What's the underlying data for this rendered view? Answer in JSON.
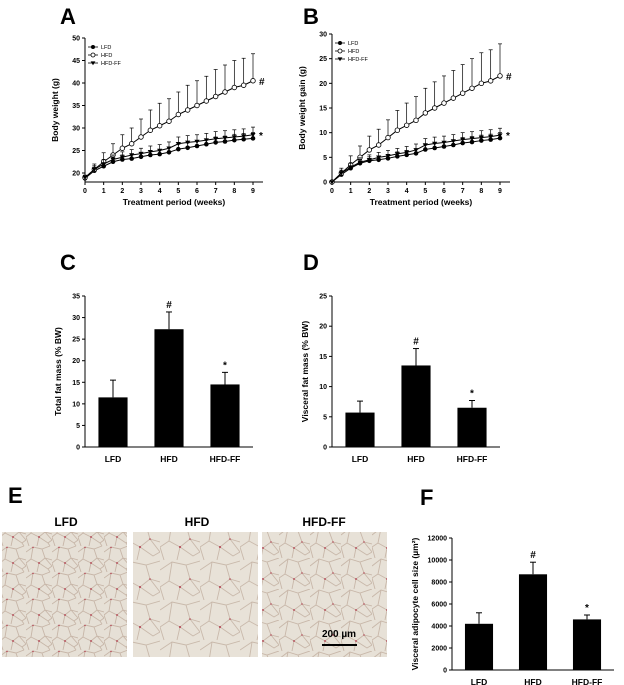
{
  "chart_data": [
    {
      "panel": "A",
      "type": "line",
      "xlabel": "Treatment period (weeks)",
      "ylabel": "Body weight (g)",
      "xlim": [
        0,
        9
      ],
      "ylim": [
        18,
        50
      ],
      "xticks": [
        0,
        1,
        2,
        3,
        4,
        5,
        6,
        7,
        8,
        9
      ],
      "yticks": [
        20,
        25,
        30,
        35,
        40,
        45,
        50
      ],
      "x": [
        0,
        0.5,
        1,
        1.5,
        2,
        2.5,
        3,
        3.5,
        4,
        4.5,
        5,
        5.5,
        6,
        6.5,
        7,
        7.5,
        8,
        8.5,
        9
      ],
      "series": [
        {
          "name": "LFD",
          "marker": "filled-circle",
          "values": [
            18.8,
            20.5,
            21.5,
            22.5,
            23.0,
            23.2,
            23.6,
            24.0,
            24.2,
            24.6,
            25.3,
            25.6,
            26.0,
            26.4,
            26.8,
            27.0,
            27.3,
            27.5,
            27.7
          ],
          "err": [
            0.6,
            0.8,
            0.8,
            0.9,
            1.0,
            1.0,
            1.0,
            1.0,
            1.0,
            1.1,
            1.1,
            1.1,
            1.2,
            1.2,
            1.2,
            1.2,
            1.3,
            1.3,
            1.3
          ]
        },
        {
          "name": "HFD",
          "marker": "open-circle",
          "values": [
            19.0,
            20.8,
            22.5,
            24.0,
            25.5,
            26.5,
            28.0,
            29.5,
            30.5,
            31.5,
            33.0,
            34.0,
            35.0,
            36.0,
            37.0,
            38.0,
            39.0,
            39.5,
            40.5
          ],
          "err": [
            0.5,
            1.2,
            2.0,
            2.5,
            3.0,
            3.5,
            4.0,
            4.5,
            5.0,
            5.0,
            5.0,
            5.5,
            5.5,
            5.5,
            6.0,
            6.0,
            6.0,
            6.0,
            6.0
          ]
        },
        {
          "name": "HFD-FF",
          "marker": "filled-triangle",
          "values": [
            19.0,
            20.8,
            22.0,
            23.0,
            23.5,
            24.0,
            24.3,
            24.7,
            25.0,
            25.5,
            26.5,
            26.8,
            27.0,
            27.3,
            27.6,
            27.8,
            28.0,
            28.2,
            28.5
          ],
          "err": [
            0.5,
            0.8,
            1.0,
            1.0,
            1.2,
            1.2,
            1.2,
            1.3,
            1.3,
            1.4,
            1.5,
            1.5,
            1.5,
            1.5,
            1.6,
            1.6,
            1.6,
            1.6,
            1.7
          ]
        }
      ],
      "annotations": [
        {
          "text": "#",
          "series": "HFD"
        },
        {
          "text": "*",
          "series": "HFD-FF"
        }
      ],
      "legend": "top-left"
    },
    {
      "panel": "B",
      "type": "line",
      "xlabel": "Treatment period (weeks)",
      "ylabel": "Body weight gain (g)",
      "xlim": [
        0,
        9
      ],
      "ylim": [
        0,
        30
      ],
      "xticks": [
        0,
        1,
        2,
        3,
        4,
        5,
        6,
        7,
        8,
        9
      ],
      "yticks": [
        0,
        5,
        10,
        15,
        20,
        25,
        30
      ],
      "x": [
        0,
        0.5,
        1,
        1.5,
        2,
        2.5,
        3,
        3.5,
        4,
        4.5,
        5,
        5.5,
        6,
        6.5,
        7,
        7.5,
        8,
        8.5,
        9
      ],
      "series": [
        {
          "name": "LFD",
          "marker": "filled-circle",
          "values": [
            0,
            1.5,
            2.8,
            3.8,
            4.3,
            4.5,
            4.8,
            5.2,
            5.5,
            5.8,
            6.6,
            6.9,
            7.2,
            7.5,
            7.9,
            8.1,
            8.4,
            8.6,
            8.9
          ],
          "err": [
            0.2,
            0.5,
            0.6,
            0.7,
            0.8,
            0.8,
            0.8,
            0.9,
            0.9,
            0.9,
            1.0,
            1.0,
            1.0,
            1.0,
            1.1,
            1.1,
            1.1,
            1.1,
            1.1
          ]
        },
        {
          "name": "HFD",
          "marker": "open-circle",
          "values": [
            0,
            1.8,
            3.5,
            5.0,
            6.5,
            7.5,
            9.0,
            10.5,
            11.5,
            12.5,
            14.0,
            15.0,
            16.0,
            17.0,
            18.0,
            19.0,
            20.0,
            20.5,
            21.5
          ],
          "err": [
            0.2,
            1.0,
            1.8,
            2.3,
            2.8,
            3.2,
            3.6,
            4.0,
            4.5,
            4.8,
            5.0,
            5.3,
            5.5,
            5.6,
            5.8,
            6.0,
            6.2,
            6.3,
            6.5
          ]
        },
        {
          "name": "HFD-FF",
          "marker": "filled-triangle",
          "values": [
            0,
            1.8,
            3.0,
            4.0,
            4.5,
            5.0,
            5.3,
            5.7,
            6.0,
            6.5,
            7.5,
            7.8,
            8.0,
            8.3,
            8.6,
            8.8,
            9.0,
            9.2,
            9.5
          ],
          "err": [
            0.2,
            0.6,
            0.8,
            0.9,
            1.0,
            1.0,
            1.1,
            1.1,
            1.2,
            1.2,
            1.3,
            1.3,
            1.3,
            1.3,
            1.4,
            1.4,
            1.4,
            1.4,
            1.4
          ]
        }
      ],
      "annotations": [
        {
          "text": "#",
          "series": "HFD"
        },
        {
          "text": "*",
          "series": "HFD-FF"
        }
      ],
      "legend": "top-left"
    },
    {
      "panel": "C",
      "type": "bar",
      "categories": [
        "LFD",
        "HFD",
        "HFD-FF"
      ],
      "values": [
        11.5,
        27.3,
        14.5
      ],
      "err": [
        4.0,
        4.0,
        2.8
      ],
      "annotations": [
        "",
        "#",
        "*"
      ],
      "ylabel": "Total fat mass (% BW)",
      "ylim": [
        0,
        35
      ],
      "yticks": [
        0,
        5,
        10,
        15,
        20,
        25,
        30,
        35
      ]
    },
    {
      "panel": "D",
      "type": "bar",
      "categories": [
        "LFD",
        "HFD",
        "HFD-FF"
      ],
      "values": [
        5.7,
        13.5,
        6.5
      ],
      "err": [
        1.9,
        2.8,
        1.2
      ],
      "annotations": [
        "",
        "#",
        "*"
      ],
      "ylabel": "Visceral fat mass (% BW)",
      "ylim": [
        0,
        25
      ],
      "yticks": [
        0,
        5,
        10,
        15,
        20,
        25
      ]
    },
    {
      "panel": "F",
      "type": "bar",
      "categories": [
        "LFD",
        "HFD",
        "HFD-FF"
      ],
      "values": [
        4200,
        8700,
        4600
      ],
      "err": [
        1000,
        1100,
        400
      ],
      "annotations": [
        "",
        "#",
        "*"
      ],
      "ylabel": "Visceral adipocyte cell size (µm²)",
      "ylim": [
        0,
        12000
      ],
      "yticks": [
        0,
        2000,
        4000,
        6000,
        8000,
        10000,
        12000
      ]
    }
  ],
  "micrographs": {
    "panel": "E",
    "labels": [
      "LFD",
      "HFD",
      "HFD-FF"
    ],
    "scale_bar": "200 µm"
  }
}
